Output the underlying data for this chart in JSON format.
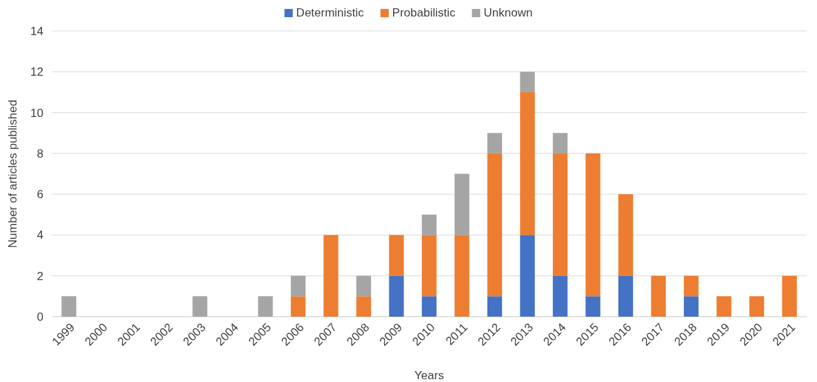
{
  "chart_data": {
    "type": "bar",
    "stacked": true,
    "xlabel": "Years",
    "ylabel": "Number of articles published",
    "categories": [
      "1999",
      "2000",
      "2001",
      "2002",
      "2003",
      "2004",
      "2005",
      "2006",
      "2007",
      "2008",
      "2009",
      "2010",
      "2011",
      "2012",
      "2013",
      "2014",
      "2015",
      "2016",
      "2017",
      "2018",
      "2019",
      "2020",
      "2021"
    ],
    "series": [
      {
        "name": "Deterministic",
        "color": "#4472c4",
        "values": [
          0,
          0,
          0,
          0,
          0,
          0,
          0,
          0,
          0,
          0,
          2,
          1,
          0,
          1,
          4,
          2,
          1,
          2,
          0,
          1,
          0,
          0,
          0
        ]
      },
      {
        "name": "Probabilistic",
        "color": "#ed7d31",
        "values": [
          0,
          0,
          0,
          0,
          0,
          0,
          0,
          1,
          4,
          1,
          2,
          3,
          4,
          7,
          7,
          6,
          7,
          4,
          2,
          1,
          1,
          1,
          2
        ]
      },
      {
        "name": "Unknown",
        "color": "#a5a5a5",
        "values": [
          1,
          0,
          0,
          0,
          1,
          0,
          1,
          1,
          0,
          1,
          0,
          1,
          3,
          1,
          1,
          1,
          0,
          0,
          0,
          0,
          0,
          0,
          0
        ]
      }
    ],
    "ylim": [
      0,
      14
    ],
    "yticks": [
      0,
      2,
      4,
      6,
      8,
      10,
      12,
      14
    ],
    "grid": "y",
    "legend": "top"
  }
}
